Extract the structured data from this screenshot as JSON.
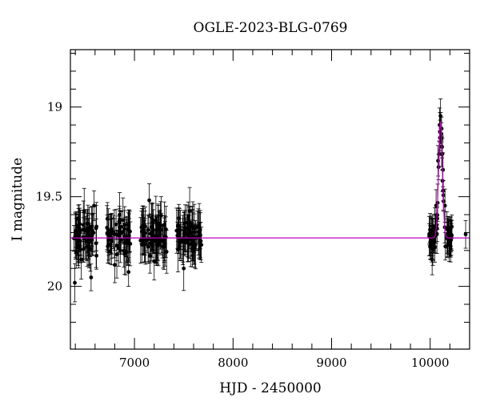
{
  "chart_data": {
    "type": "scatter",
    "title": "OGLE-2023-BLG-0769",
    "xlabel": "HJD - 2450000",
    "ylabel": "I magnitude",
    "xlim": [
      6350,
      10400
    ],
    "ylim": [
      20.35,
      18.68
    ],
    "y_inverted": true,
    "x_ticks": [
      7000,
      8000,
      9000,
      10000
    ],
    "y_ticks": [
      19,
      19.5,
      20
    ],
    "x_tick_labels": [
      "7000",
      "8000",
      "9000",
      "10000"
    ],
    "y_tick_labels": [
      "19",
      "19.5",
      "20"
    ],
    "grid": false,
    "colors": {
      "data": "#000000",
      "model": "#c000c0"
    },
    "series": [
      {
        "kind": "data",
        "seasons": [
          [
            6380,
            6620
          ],
          [
            6720,
            6960
          ],
          [
            7060,
            7330
          ],
          [
            7420,
            7680
          ]
        ],
        "baseline_mag": 19.72,
        "scatter_mag": 0.12,
        "typical_error_mag": 0.12,
        "points": [
          [
            6395,
            19.98
          ],
          [
            6400,
            19.72
          ],
          [
            6430,
            19.62
          ],
          [
            6460,
            19.85
          ],
          [
            6490,
            19.58
          ],
          [
            6520,
            19.78
          ],
          [
            6560,
            19.95
          ],
          [
            6590,
            19.55
          ],
          [
            6760,
            19.7
          ],
          [
            6800,
            19.88
          ],
          [
            6850,
            19.6
          ],
          [
            6900,
            19.82
          ],
          [
            6940,
            19.92
          ],
          [
            7100,
            19.75
          ],
          [
            7150,
            19.52
          ],
          [
            7200,
            19.86
          ],
          [
            7260,
            19.66
          ],
          [
            7300,
            19.78
          ],
          [
            7450,
            19.62
          ],
          [
            7500,
            19.9
          ],
          [
            7560,
            19.58
          ],
          [
            7600,
            19.8
          ],
          [
            7650,
            19.72
          ]
        ],
        "event_points": [
          [
            10000,
            19.78
          ],
          [
            10020,
            19.85
          ],
          [
            10040,
            19.72
          ],
          [
            10060,
            19.55
          ],
          [
            10080,
            19.3
          ],
          [
            10095,
            19.1
          ],
          [
            10105,
            19.05
          ],
          [
            10115,
            19.12
          ],
          [
            10130,
            19.35
          ],
          [
            10150,
            19.55
          ],
          [
            10170,
            19.68
          ],
          [
            10200,
            19.75
          ],
          [
            10360,
            19.71
          ]
        ]
      },
      {
        "kind": "model",
        "baseline_mag": 19.73,
        "peak_mag": 19.08,
        "t0": 10105,
        "tE": 35
      }
    ]
  }
}
